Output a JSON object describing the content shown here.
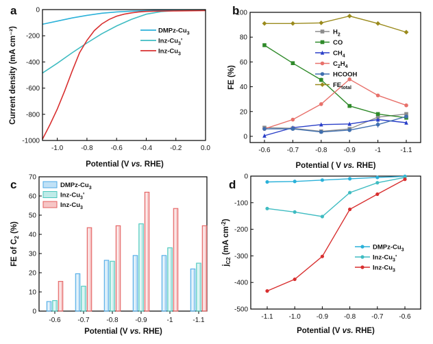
{
  "colors": {
    "dmpz": "#2ab1d9",
    "inz1": "#3fbcc2",
    "inz": "#d82f2f",
    "h2": "#8c8c8c",
    "co": "#2f8a2a",
    "ch4": "#2a3fc8",
    "c2h4": "#e8716b",
    "hcooh": "#3f6fb0",
    "fetotal": "#9a8a1c",
    "bar_dmpz": "#4aa9e6",
    "bar_inz1": "#47c7bc",
    "bar_inz": "#e45c5c"
  },
  "chart_data": [
    {
      "id": "a",
      "panel_label": "a",
      "type": "line",
      "xlabel": "Potential (V vs. RHE)",
      "ylabel": "Current density (mA cm⁻²)",
      "xlim": [
        -1.1,
        0.0
      ],
      "ylim": [
        -1000,
        0
      ],
      "xticks": [
        -1.0,
        -0.8,
        -0.6,
        -0.4,
        -0.2,
        0.0
      ],
      "xtick_labels": [
        "-1.0",
        "-0.8",
        "-0.6",
        "-0.4",
        "-0.2",
        "0.0"
      ],
      "yticks": [
        0,
        -200,
        -400,
        -600,
        -800,
        -1000
      ],
      "ytick_labels": [
        "0",
        "-200",
        "-400",
        "-600",
        "-800",
        "-1000"
      ],
      "legend": "top-right",
      "series": [
        {
          "name": "DMPz-Cu",
          "sub": "3",
          "sup": "",
          "color_key": "dmpz",
          "x": [
            -1.1,
            -1.0,
            -0.9,
            -0.8,
            -0.7,
            -0.6,
            -0.5,
            -0.4,
            -0.3,
            -0.2,
            -0.1,
            0.0
          ],
          "y": [
            -112,
            -88,
            -64,
            -44,
            -28,
            -18,
            -12,
            -8,
            -6,
            -4,
            -3,
            -2
          ]
        },
        {
          "name": "Inz-Cu",
          "sub": "3",
          "sup": "'",
          "color_key": "inz1",
          "x": [
            -1.1,
            -1.0,
            -0.9,
            -0.8,
            -0.7,
            -0.6,
            -0.5,
            -0.4,
            -0.3,
            -0.2,
            -0.1,
            0.0
          ],
          "y": [
            -485,
            -410,
            -330,
            -255,
            -185,
            -125,
            -75,
            -35,
            -15,
            -8,
            -5,
            -3
          ]
        },
        {
          "name": "Inz-Cu",
          "sub": "3",
          "sup": "",
          "color_key": "inz",
          "x": [
            -1.1,
            -1.05,
            -1.0,
            -0.95,
            -0.9,
            -0.85,
            -0.8,
            -0.75,
            -0.7,
            -0.65,
            -0.6,
            -0.55,
            -0.5,
            -0.45,
            -0.4,
            -0.35,
            -0.3,
            -0.2,
            -0.1,
            0.0
          ],
          "y": [
            -990,
            -880,
            -760,
            -620,
            -470,
            -330,
            -235,
            -160,
            -110,
            -75,
            -50,
            -35,
            -25,
            -18,
            -14,
            -12,
            -11,
            -10,
            -9,
            -8
          ]
        }
      ]
    },
    {
      "id": "b",
      "panel_label": "b",
      "type": "line",
      "xlabel": "Potential ( V vs. RHE)",
      "ylabel": "FE (%)",
      "categories": [
        "-0.6",
        "-0.7",
        "-0.8",
        "-0.9",
        "-1",
        "-1.1"
      ],
      "ylim": [
        -5,
        100
      ],
      "yticks": [
        0,
        20,
        40,
        60,
        80,
        100
      ],
      "ytick_labels": [
        "0",
        "20",
        "40",
        "60",
        "80",
        "100"
      ],
      "legend": "middle-right",
      "series": [
        {
          "name": "H",
          "sub": "2",
          "color_key": "h2",
          "marker": "square",
          "values": [
            7,
            6.5,
            4,
            6,
            15.5,
            18
          ],
          "errors": [
            0.6,
            0.6,
            0.6,
            0.8,
            3,
            1
          ]
        },
        {
          "name": "CO",
          "sub": "",
          "color_key": "co",
          "marker": "square",
          "values": [
            73.5,
            59,
            45.5,
            24.5,
            18,
            15
          ],
          "errors": [
            1,
            0.8,
            1.8,
            1,
            1,
            0.8
          ]
        },
        {
          "name": "CH",
          "sub": "4",
          "color_key": "ch4",
          "marker": "triangle",
          "values": [
            0.5,
            7,
            9.5,
            10,
            13.5,
            11
          ],
          "errors": [
            0.3,
            0.6,
            0.6,
            0.6,
            1,
            0.6
          ]
        },
        {
          "name": "C",
          "sub": "2",
          "sub2": "H",
          "sub3": "4",
          "color_key": "c2h4",
          "marker": "circle",
          "values": [
            6,
            13.5,
            26,
            46,
            33,
            25
          ],
          "errors": [
            0.5,
            1,
            1.5,
            1,
            0.8,
            0.8
          ]
        },
        {
          "name": "HCOOH",
          "sub": "",
          "color_key": "hcooh",
          "marker": "circle",
          "values": [
            6,
            6,
            3.5,
            5,
            9.5,
            16
          ],
          "errors": [
            0.5,
            0.5,
            0.5,
            0.5,
            2.5,
            0.8
          ]
        },
        {
          "name": "FE",
          "sub": "total",
          "color_key": "fetotal",
          "marker": "diamond",
          "values": [
            91,
            91,
            91.5,
            97,
            91,
            84
          ],
          "errors": [
            0.5,
            0.5,
            0.5,
            0.8,
            0.5,
            0.5
          ]
        }
      ]
    },
    {
      "id": "c",
      "panel_label": "c",
      "type": "bar",
      "xlabel": "Potential (V vs. RHE)",
      "ylabel": "FE of C₂ (%)",
      "categories": [
        "-0.6",
        "-0.7",
        "-0.8",
        "-0.9",
        "-1",
        "-1.1"
      ],
      "ylim": [
        0,
        70
      ],
      "yticks": [
        0,
        10,
        20,
        30,
        40,
        50,
        60,
        70
      ],
      "ytick_labels": [
        "0",
        "10",
        "20",
        "30",
        "40",
        "50",
        "60",
        "70"
      ],
      "legend": "top-left",
      "series": [
        {
          "name": "DMPz-Cu",
          "sub": "3",
          "sup": "",
          "color_key": "bar_dmpz",
          "values": [
            5,
            19.5,
            26.5,
            29,
            29,
            22
          ]
        },
        {
          "name": "Inz-Cu",
          "sub": "3",
          "sup": "'",
          "color_key": "bar_inz1",
          "values": [
            5.5,
            13,
            26,
            45.5,
            33,
            25
          ]
        },
        {
          "name": "Inz-Cu",
          "sub": "3",
          "sup": "",
          "color_key": "bar_inz",
          "values": [
            15.5,
            43.5,
            44.5,
            62,
            53.5,
            44.5
          ]
        }
      ]
    },
    {
      "id": "d",
      "panel_label": "d",
      "type": "line",
      "xlabel": "Potential (V vs. RHE)",
      "ylabel": "j C2 (mA cm⁻²)",
      "categories": [
        "-1.1",
        "-1.0",
        "-0.9",
        "-0.8",
        "-0.7",
        "-0.6"
      ],
      "ylim": [
        -500,
        0
      ],
      "yticks": [
        0,
        -100,
        -200,
        -300,
        -400,
        -500
      ],
      "ytick_labels": [
        "0",
        "-100",
        "-200",
        "-300",
        "-400",
        "-500"
      ],
      "legend": "middle-right",
      "series": [
        {
          "name": "DMPz-Cu",
          "sub": "3",
          "sup": "",
          "color_key": "dmpz",
          "values": [
            -22,
            -20,
            -15,
            -10,
            -5,
            -1
          ]
        },
        {
          "name": "Inz-Cu",
          "sub": "3",
          "sup": "'",
          "color_key": "inz1",
          "values": [
            -122,
            -135,
            -152,
            -62,
            -25,
            -5
          ]
        },
        {
          "name": "Inz-Cu",
          "sub": "3",
          "sup": "",
          "color_key": "inz",
          "values": [
            -432,
            -388,
            -302,
            -125,
            -68,
            -12
          ]
        }
      ]
    }
  ]
}
